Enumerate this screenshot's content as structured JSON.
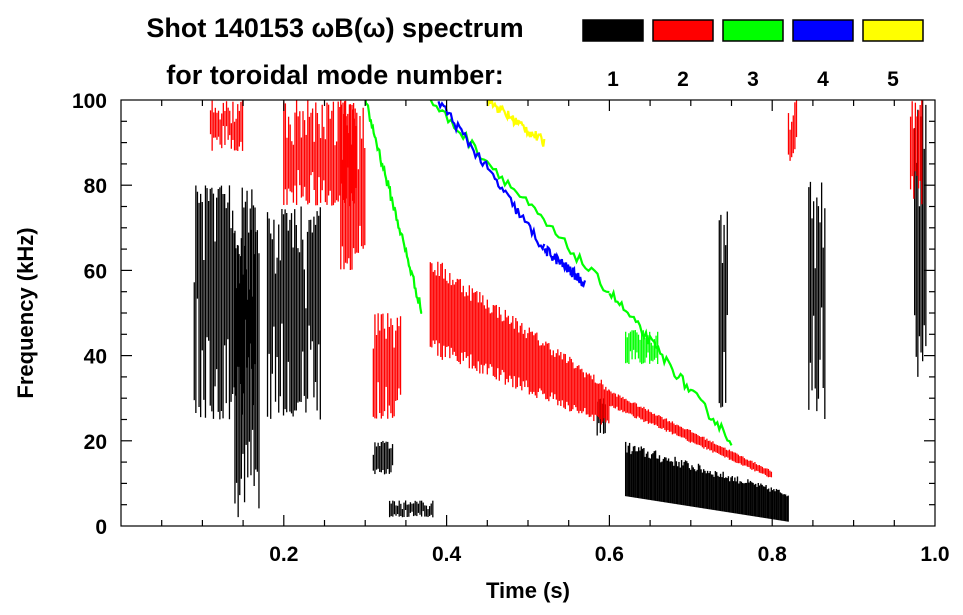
{
  "chart_data": {
    "type": "heatmap",
    "title_line1": "Shot 140153 ωB(ω) spectrum",
    "title_line2": "for toroidal mode number:",
    "xlabel": "Time (s)",
    "ylabel": "Frequency (kHz)",
    "xlim": [
      0.0,
      1.0
    ],
    "ylim": [
      0,
      100
    ],
    "x_ticks": [
      {
        "value": 0.2,
        "label": "0.2"
      },
      {
        "value": 0.4,
        "label": "0.4"
      },
      {
        "value": 0.6,
        "label": "0.6"
      },
      {
        "value": 0.8,
        "label": "0.8"
      },
      {
        "value": 1.0,
        "label": "1.0"
      }
    ],
    "y_ticks": [
      {
        "value": 0,
        "label": "0"
      },
      {
        "value": 20,
        "label": "20"
      },
      {
        "value": 40,
        "label": "40"
      },
      {
        "value": 60,
        "label": "60"
      },
      {
        "value": 80,
        "label": "80"
      },
      {
        "value": 100,
        "label": "100"
      }
    ],
    "legend_position": "top-right",
    "modes": [
      {
        "n": "1",
        "color": "#000000"
      },
      {
        "n": "2",
        "color": "#ff0000"
      },
      {
        "n": "3",
        "color": "#00ff00"
      },
      {
        "n": "4",
        "color": "#0000ff"
      },
      {
        "n": "5",
        "color": "#ffff00"
      }
    ],
    "features": [
      {
        "mode": "1",
        "kind": "block",
        "t": [
          0.09,
          0.165
        ],
        "f": [
          25,
          80
        ]
      },
      {
        "mode": "1",
        "kind": "block",
        "t": [
          0.14,
          0.17
        ],
        "f": [
          2,
          70
        ]
      },
      {
        "mode": "1",
        "kind": "block",
        "t": [
          0.18,
          0.245
        ],
        "f": [
          25,
          75
        ]
      },
      {
        "mode": "1",
        "kind": "block",
        "t": [
          0.31,
          0.335
        ],
        "f": [
          12,
          20
        ]
      },
      {
        "mode": "1",
        "kind": "block",
        "t": [
          0.33,
          0.385
        ],
        "f": [
          2,
          6
        ]
      },
      {
        "mode": "1",
        "kind": "block",
        "t": [
          0.585,
          0.595
        ],
        "f": [
          20,
          30
        ]
      },
      {
        "mode": "1",
        "kind": "block",
        "t": [
          0.735,
          0.745
        ],
        "f": [
          25,
          75
        ]
      },
      {
        "mode": "1",
        "kind": "block",
        "t": [
          0.845,
          0.865
        ],
        "f": [
          25,
          82
        ]
      },
      {
        "mode": "1",
        "kind": "block",
        "t": [
          0.975,
          0.99
        ],
        "f": [
          35,
          100
        ]
      },
      {
        "mode": "1",
        "kind": "blob",
        "t": [
          0.62,
          0.82
        ],
        "f_bottom": [
          7,
          1
        ],
        "f_top": [
          20,
          8
        ]
      },
      {
        "mode": "2",
        "kind": "block",
        "t": [
          0.11,
          0.15
        ],
        "f": [
          88,
          100
        ]
      },
      {
        "mode": "2",
        "kind": "block",
        "t": [
          0.2,
          0.29
        ],
        "f": [
          75,
          100
        ]
      },
      {
        "mode": "2",
        "kind": "block",
        "t": [
          0.27,
          0.3
        ],
        "f": [
          60,
          100
        ]
      },
      {
        "mode": "2",
        "kind": "block",
        "t": [
          0.31,
          0.345
        ],
        "f": [
          25,
          50
        ]
      },
      {
        "mode": "2",
        "kind": "block",
        "t": [
          0.82,
          0.83
        ],
        "f": [
          85,
          100
        ]
      },
      {
        "mode": "2",
        "kind": "block",
        "t": [
          0.97,
          0.985
        ],
        "f": [
          75,
          100
        ]
      },
      {
        "mode": "2",
        "kind": "band",
        "t": [
          0.38,
          0.6
        ],
        "f_center": [
          52,
          28
        ],
        "width": [
          24,
          10
        ]
      },
      {
        "mode": "2",
        "kind": "band",
        "t": [
          0.6,
          0.8
        ],
        "f_center": [
          30,
          12
        ],
        "width": [
          4,
          2
        ]
      },
      {
        "mode": "3",
        "kind": "line",
        "t": [
          0.3,
          0.37
        ],
        "f": [
          100,
          50
        ]
      },
      {
        "mode": "3",
        "kind": "line",
        "t": [
          0.38,
          0.6
        ],
        "f": [
          100,
          55
        ]
      },
      {
        "mode": "3",
        "kind": "line",
        "t": [
          0.6,
          0.75
        ],
        "f": [
          55,
          20
        ]
      },
      {
        "mode": "3",
        "kind": "block",
        "t": [
          0.62,
          0.66
        ],
        "f": [
          38,
          46
        ]
      },
      {
        "mode": "4",
        "kind": "line",
        "t": [
          0.39,
          0.52
        ],
        "f": [
          100,
          65
        ]
      },
      {
        "mode": "4",
        "kind": "line",
        "t": [
          0.52,
          0.57
        ],
        "f": [
          65,
          57
        ]
      },
      {
        "mode": "5",
        "kind": "line",
        "t": [
          0.45,
          0.52
        ],
        "f": [
          100,
          90
        ]
      }
    ]
  }
}
